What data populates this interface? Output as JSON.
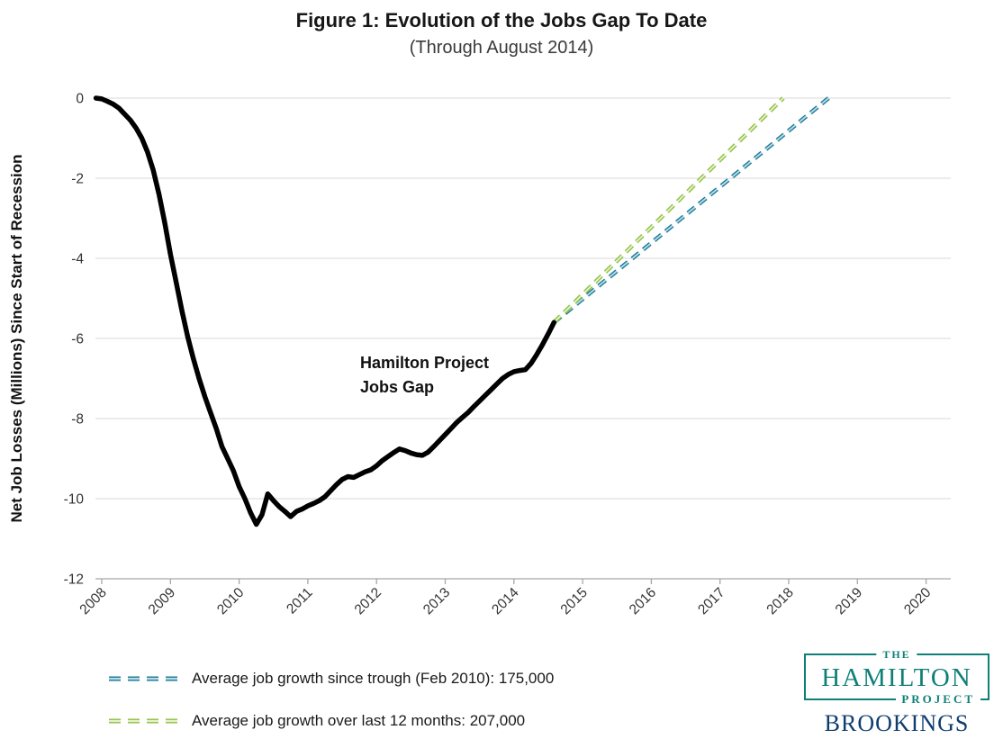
{
  "title": "Figure 1: Evolution of the Jobs Gap To Date",
  "subtitle": "(Through August 2014)",
  "y_axis": {
    "label": "Net Job Losses (Millions) Since Start of Recession",
    "ticks": [
      0,
      -2,
      -4,
      -6,
      -8,
      -10,
      -12
    ]
  },
  "x_axis": {
    "ticks": [
      2008,
      2009,
      2010,
      2011,
      2012,
      2013,
      2014,
      2015,
      2016,
      2017,
      2018,
      2019,
      2020
    ]
  },
  "annotation": {
    "line1": "Hamilton Project",
    "line2": "Jobs Gap"
  },
  "legend": [
    {
      "id": "trough",
      "label": "Average job growth since trough (Feb 2010): 175,000",
      "color": "#1F7391",
      "color_light": "#AEE0EC"
    },
    {
      "id": "12mo",
      "label": "Average job growth over last 12 months: 207,000",
      "color": "#8FBE45",
      "color_light": "#E5F2C7"
    }
  ],
  "logo": {
    "the": "THE",
    "hamilton": "HAMILTON",
    "project": "PROJECT",
    "brookings": "BROOKINGS",
    "teal": "#0E8077",
    "navy": "#0F3D70"
  },
  "colors": {
    "jobs_gap_line": "#000000",
    "gridline": "#D9D9D9",
    "axis": "#A6A6A6",
    "tick_label": "#333333",
    "background": "#FFFFFF"
  },
  "chart_data": {
    "type": "line",
    "title": "Figure 1: Evolution of the Jobs Gap To Date",
    "subtitle": "(Through August 2014)",
    "xlabel": "",
    "ylabel": "Net Job Losses (Millions) Since Start of Recession",
    "xlim": [
      2007.9,
      2020.4
    ],
    "ylim": [
      -12,
      0
    ],
    "grid": true,
    "legend_position": "bottom-left",
    "series": [
      {
        "name": "Hamilton Project Jobs Gap",
        "style": "solid",
        "color": "#000000",
        "start_year": 2007.9167,
        "step_years": 0.0833333,
        "values": [
          0.0,
          -0.02,
          -0.08,
          -0.15,
          -0.25,
          -0.4,
          -0.55,
          -0.75,
          -1.0,
          -1.35,
          -1.8,
          -2.4,
          -3.1,
          -3.9,
          -4.6,
          -5.3,
          -5.95,
          -6.5,
          -7.0,
          -7.45,
          -7.85,
          -8.25,
          -8.7,
          -9.0,
          -9.3,
          -9.7,
          -10.0,
          -10.35,
          -10.64,
          -10.4,
          -9.88,
          -10.05,
          -10.2,
          -10.32,
          -10.45,
          -10.32,
          -10.26,
          -10.18,
          -10.12,
          -10.05,
          -9.95,
          -9.8,
          -9.65,
          -9.52,
          -9.45,
          -9.47,
          -9.4,
          -9.33,
          -9.28,
          -9.18,
          -9.05,
          -8.95,
          -8.85,
          -8.76,
          -8.8,
          -8.86,
          -8.9,
          -8.92,
          -8.84,
          -8.7,
          -8.55,
          -8.4,
          -8.25,
          -8.1,
          -7.97,
          -7.85,
          -7.7,
          -7.56,
          -7.42,
          -7.28,
          -7.14,
          -7.0,
          -6.9,
          -6.83,
          -6.8,
          -6.78,
          -6.62,
          -6.4,
          -6.15,
          -5.88,
          -5.6
        ]
      },
      {
        "name": "Average job growth since trough (Feb 2010): 175,000",
        "style": "dashed",
        "color": "#1F7391",
        "color_light": "#AEE0EC",
        "points": [
          [
            2014.583,
            -5.6
          ],
          [
            2018.58,
            0
          ]
        ]
      },
      {
        "name": "Average job growth over last 12 months: 207,000",
        "style": "dashed",
        "color": "#8FBE45",
        "color_light": "#E5F2C7",
        "points": [
          [
            2014.583,
            -5.6
          ],
          [
            2017.92,
            0
          ]
        ]
      }
    ]
  }
}
